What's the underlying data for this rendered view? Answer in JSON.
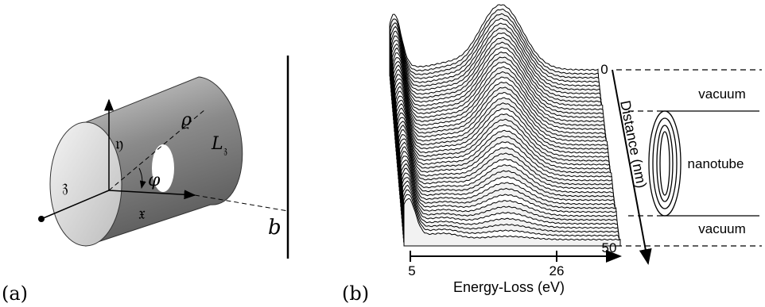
{
  "panel_a": {
    "label": "(a)",
    "rho": "ϱ",
    "eta": "𝔶",
    "length_main": "L",
    "length_sub": "𝔷",
    "zeta": "𝔷",
    "phi": "φ",
    "xi": "𝔵",
    "impact": "b"
  },
  "panel_b": {
    "label": "(b)",
    "x_axis_title": "Energy-Loss (eV)",
    "x_ticks": [
      "5",
      "26"
    ],
    "y_axis_title": "Distance (nm)",
    "y_ticks": [
      "0",
      "50"
    ],
    "regions": [
      "vacuum",
      "nanotube",
      "vacuum"
    ]
  }
}
